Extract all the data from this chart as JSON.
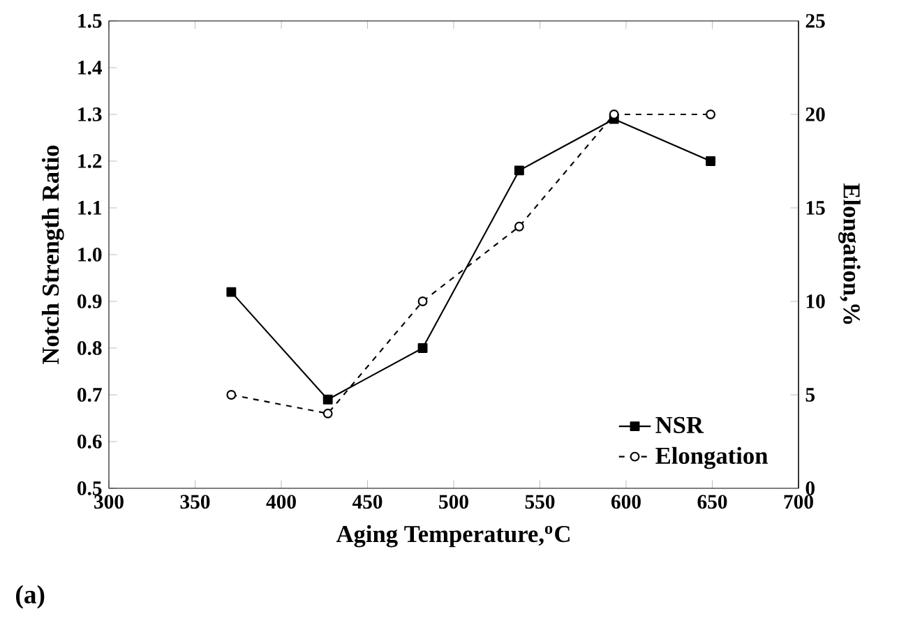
{
  "chart_data": {
    "type": "line",
    "xlabel": "Aging Temperature,$^{o}$C",
    "ylabel": "Notch Strength Ratio",
    "y2label": "Elongation,%",
    "x": [
      371,
      427,
      482,
      538,
      593,
      649
    ],
    "series": [
      {
        "name": "NSR",
        "color": "#000000",
        "values": [
          0.92,
          0.69,
          0.8,
          1.18,
          1.29,
          1.2
        ],
        "marker": "square",
        "line_style": "solid"
      },
      {
        "name": "Elongation",
        "color": "#000000",
        "values": [
          5,
          4,
          10,
          14,
          20,
          20
        ],
        "marker": "circle",
        "line_style": "dashed",
        "axis": "y2"
      }
    ],
    "xlim": [
      300,
      700
    ],
    "xticks": [
      300,
      350,
      400,
      450,
      500,
      550,
      600,
      650,
      700
    ],
    "ylim": [
      0.5,
      1.5
    ],
    "yticks": [
      0.5,
      0.6,
      0.7,
      0.8,
      0.9,
      {
        "value": 1,
        "label": "1.0"
      },
      1.1,
      1.2,
      1.3,
      1.4,
      1.5
    ],
    "y2lim": [
      0,
      25
    ],
    "y2ticks": [
      0,
      5,
      10,
      15,
      20,
      25
    ],
    "legend": "bottom right",
    "grid": false,
    "annotations": [
      "(a)"
    ]
  }
}
